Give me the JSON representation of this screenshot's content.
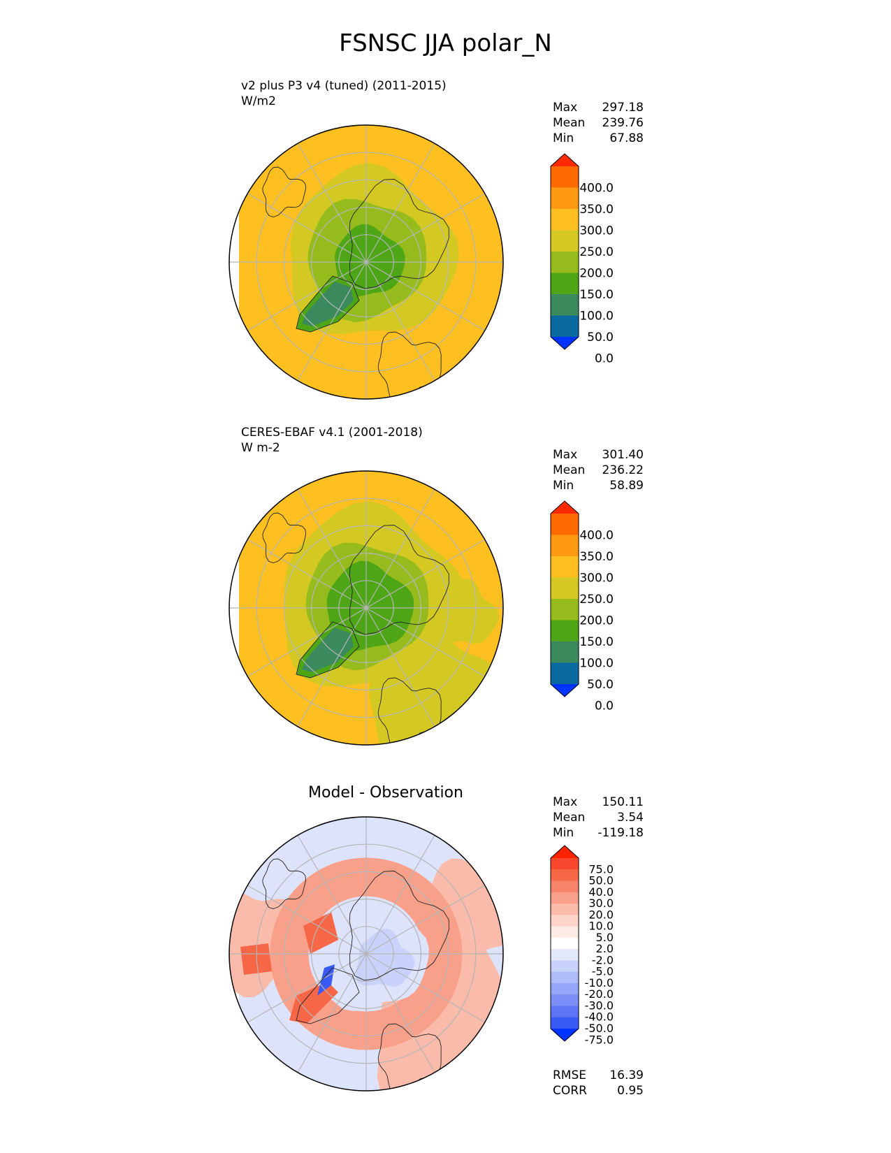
{
  "title": "FSNSC JJA polar_N",
  "panels": [
    {
      "id": "model",
      "title_line1": "v2 plus P3 v4 (tuned) (2011-2015)",
      "title_line2": "W/m2",
      "stats": [
        {
          "label": "Max",
          "value": "297.18"
        },
        {
          "label": "Mean",
          "value": "239.76"
        },
        {
          "label": "Min",
          "value": "67.88"
        }
      ]
    },
    {
      "id": "obs",
      "title_line1": "CERES-EBAF v4.1 (2001-2018)",
      "title_line2": "W m-2",
      "stats": [
        {
          "label": "Max",
          "value": "301.40"
        },
        {
          "label": "Mean",
          "value": "236.22"
        },
        {
          "label": "Min",
          "value": "58.89"
        }
      ]
    },
    {
      "id": "diff",
      "title": "Model - Observation",
      "stats": [
        {
          "label": "Max",
          "value": "150.11"
        },
        {
          "label": "Mean",
          "value": "3.54"
        },
        {
          "label": "Min",
          "value": "-119.18"
        }
      ],
      "metrics": [
        {
          "label": "RMSE",
          "value": "16.39"
        },
        {
          "label": "CORR",
          "value": "0.95"
        }
      ]
    }
  ],
  "colorbars": {
    "absolute": {
      "levels": [
        "400.0",
        "350.0",
        "300.0",
        "250.0",
        "200.0",
        "150.0",
        "100.0",
        "50.0",
        "0.0"
      ],
      "colors_top_to_bottom": [
        "#ff2a00",
        "#ff6a00",
        "#ff9a12",
        "#fdc020",
        "#d4c922",
        "#96bb1d",
        "#4ea515",
        "#3a8a5e",
        "#0a6aa0",
        "#0033ff"
      ]
    },
    "difference": {
      "levels": [
        "75.0",
        "50.0",
        "40.0",
        "30.0",
        "20.0",
        "10.0",
        "5.0",
        "2.0",
        "-2.0",
        "-5.0",
        "-10.0",
        "-20.0",
        "-30.0",
        "-40.0",
        "-50.0",
        "-75.0"
      ],
      "colors_top_to_bottom": [
        "#ff2200",
        "#f8472d",
        "#f56747",
        "#f7846a",
        "#f9a08a",
        "#fbbbaa",
        "#fcd4c8",
        "#fdeae4",
        "#ffffff",
        "#e4e8fb",
        "#c9d2fb",
        "#afbcfa",
        "#95a6f8",
        "#7b8ff6",
        "#5d76f5",
        "#3a5af5",
        "#0033ff"
      ]
    }
  },
  "chart_data": [
    {
      "type": "heatmap",
      "title": "v2 plus P3 v4 (tuned) (2011-2015)",
      "units": "W/m2",
      "projection": "north polar stereographic",
      "stats": {
        "max": 297.18,
        "mean": 239.76,
        "min": 67.88
      },
      "colorbar_levels": [
        0,
        50,
        100,
        150,
        200,
        250,
        300,
        350,
        400
      ]
    },
    {
      "type": "heatmap",
      "title": "CERES-EBAF v4.1 (2001-2018)",
      "units": "W m-2",
      "projection": "north polar stereographic",
      "stats": {
        "max": 301.4,
        "mean": 236.22,
        "min": 58.89
      },
      "colorbar_levels": [
        0,
        50,
        100,
        150,
        200,
        250,
        300,
        350,
        400
      ]
    },
    {
      "type": "heatmap",
      "title": "Model - Observation",
      "projection": "north polar stereographic",
      "stats": {
        "max": 150.11,
        "mean": 3.54,
        "min": -119.18,
        "rmse": 16.39,
        "corr": 0.95
      },
      "colorbar_levels": [
        -75,
        -50,
        -40,
        -30,
        -20,
        -10,
        -5,
        -2,
        2,
        5,
        10,
        20,
        30,
        40,
        50,
        75
      ]
    }
  ]
}
